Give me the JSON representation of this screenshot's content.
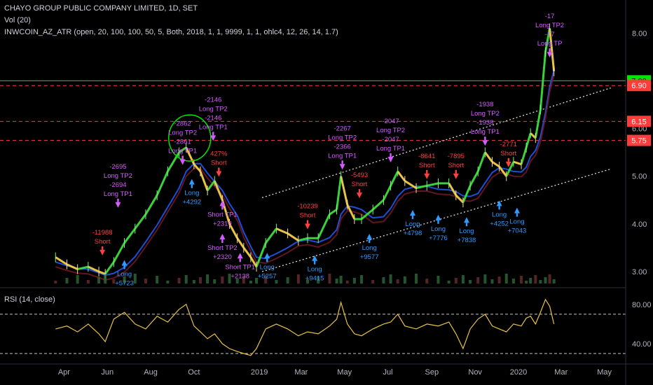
{
  "header": {
    "title": "CHAYO GROUP PUBLIC COMPANY LIMITED, 1D, SET",
    "vol": "Vol (20)",
    "indicator": "INWCOIN_AZ_ATR (open, 20, 100, 100, 50, 5, Both, 2018, 1, 1, 9999, 1, 1, ohlc4, 12, 26, 14, 1.7)"
  },
  "rsi_label": "RSI (14, close)",
  "chart_data": [
    {
      "type": "line",
      "title": "CHAYO GROUP PUBLIC COMPANY LIMITED, 1D, SET",
      "x_labels": [
        "Apr",
        "Jun",
        "Aug",
        "Oct",
        "2019",
        "Mar",
        "May",
        "Jul",
        "Sep",
        "Nov",
        "2020",
        "Mar",
        "May"
      ],
      "ylim": [
        2.75,
        8.4
      ],
      "y_ticks": [
        "8.00",
        "6.00",
        "5.00",
        "4.00",
        "3.00"
      ],
      "price_levels": [
        {
          "value": 7.0,
          "label": "7.00",
          "color": "#00e600",
          "style": "solid"
        },
        {
          "value": 6.9,
          "label": "6.90",
          "color": "#ff3b3b",
          "style": "dashed"
        },
        {
          "value": 6.15,
          "label": "6.15",
          "color": "#ff3b3b",
          "style": "dashed"
        },
        {
          "value": 5.75,
          "label": "5.75",
          "color": "#ff3b3b",
          "style": "dashed"
        }
      ],
      "series": [
        {
          "x": [
            "2018-03-20",
            "2018-04-05",
            "2018-04-20",
            "2018-05-05",
            "2018-05-20",
            "2018-05-29",
            "2018-06-10",
            "2018-06-25",
            "2018-07-10",
            "2018-07-25",
            "2018-08-10",
            "2018-08-25",
            "2018-09-10",
            "2018-09-20",
            "2018-10-01",
            "2018-10-10",
            "2018-10-20",
            "2018-10-30",
            "2018-11-10",
            "2018-11-20",
            "2018-12-01",
            "2018-12-10",
            "2018-12-20",
            "2018-12-28",
            "2019-01-10",
            "2019-01-25",
            "2019-02-10",
            "2019-02-25",
            "2019-03-10",
            "2019-03-25",
            "2019-04-10",
            "2019-04-20",
            "2019-04-26",
            "2019-05-05",
            "2019-05-15",
            "2019-05-25",
            "2019-06-10",
            "2019-06-25",
            "2019-07-05",
            "2019-07-15",
            "2019-07-25",
            "2019-08-10",
            "2019-08-25",
            "2019-09-10",
            "2019-09-25",
            "2019-10-05",
            "2019-10-15",
            "2019-10-25",
            "2019-11-05",
            "2019-11-15",
            "2019-11-25",
            "2019-12-05",
            "2019-12-15",
            "2019-12-25",
            "2020-01-05",
            "2020-01-12",
            "2020-01-18",
            "2020-01-25",
            "2020-02-01",
            "2020-02-08",
            "2020-02-14",
            "2020-02-20"
          ],
          "y": [
            3.3,
            3.15,
            3.05,
            3.1,
            3.0,
            2.95,
            3.2,
            3.6,
            3.9,
            4.2,
            4.6,
            5.1,
            5.5,
            5.6,
            5.25,
            5.1,
            4.7,
            4.9,
            4.5,
            4.0,
            3.7,
            3.5,
            3.3,
            3.1,
            3.6,
            3.9,
            3.8,
            3.65,
            3.7,
            3.7,
            4.2,
            4.3,
            5.0,
            4.4,
            4.1,
            4.1,
            4.3,
            4.5,
            4.8,
            5.1,
            4.9,
            4.75,
            4.8,
            4.85,
            4.85,
            4.6,
            4.45,
            4.8,
            5.1,
            5.5,
            5.3,
            5.2,
            5.0,
            5.3,
            5.25,
            5.6,
            5.9,
            5.8,
            6.4,
            7.6,
            8.1,
            7.2
          ]
        }
      ],
      "signals": [
        {
          "x": "2018-05-25",
          "y": 3.25,
          "text": [
            "-11988",
            "Short"
          ],
          "color": "#ff4040",
          "dir": "down"
        },
        {
          "x": "2018-06-25",
          "y": 3.3,
          "text": [
            "Long",
            "+5723"
          ],
          "color": "#2f9bff",
          "dir": "up"
        },
        {
          "x": "2018-06-16",
          "y": 4.25,
          "text": [
            "-2695",
            "Long TP2",
            "-2694",
            "Long TP1"
          ],
          "color": "#d65cff",
          "dir": "down"
        },
        {
          "x": "2018-09-15",
          "y": 5.15,
          "text": [
            "-2862",
            "Long TP2",
            "-2861",
            "Long TP1"
          ],
          "color": "#d65cff",
          "dir": "down"
        },
        {
          "x": "2018-09-28",
          "y": 5.0,
          "text": [
            "Long",
            "+4292"
          ],
          "color": "#2f9bff",
          "dir": "up"
        },
        {
          "x": "2018-10-28",
          "y": 5.65,
          "text": [
            "-2146",
            "Long TP2",
            "-2146",
            "Long TP1"
          ],
          "color": "#d65cff",
          "dir": "down"
        },
        {
          "x": "2018-11-05",
          "y": 4.9,
          "text": [
            "427%",
            "Short"
          ],
          "color": "#ff4040",
          "dir": "down"
        },
        {
          "x": "2018-11-10",
          "y": 4.55,
          "text": [
            "Short TP1",
            "+2319"
          ],
          "color": "#d65cff",
          "dir": "up"
        },
        {
          "x": "2018-11-10",
          "y": 3.85,
          "text": [
            "Short TP2",
            "+2320"
          ],
          "color": "#d65cff",
          "dir": "up"
        },
        {
          "x": "2018-12-05",
          "y": 3.45,
          "text": [
            "Short TP1",
            "+2138"
          ],
          "color": "#d65cff",
          "dir": "up"
        },
        {
          "x": "2019-01-12",
          "y": 3.45,
          "text": [
            "Long",
            "+5257"
          ],
          "color": "#2f9bff",
          "dir": "up"
        },
        {
          "x": "2019-03-10",
          "y": 3.8,
          "text": [
            "-10239",
            "Short"
          ],
          "color": "#ff4040",
          "dir": "down"
        },
        {
          "x": "2019-03-20",
          "y": 3.4,
          "text": [
            "Long",
            "+9415"
          ],
          "color": "#2f9bff",
          "dir": "up"
        },
        {
          "x": "2019-04-28",
          "y": 5.05,
          "text": [
            "-2267",
            "Long TP2",
            "-2366",
            "Long TP1"
          ],
          "color": "#d65cff",
          "dir": "down"
        },
        {
          "x": "2019-05-22",
          "y": 4.45,
          "text": [
            "-5493",
            "Short"
          ],
          "color": "#ff4040",
          "dir": "down"
        },
        {
          "x": "2019-06-05",
          "y": 3.85,
          "text": [
            "Long",
            "+9577"
          ],
          "color": "#2f9bff",
          "dir": "up"
        },
        {
          "x": "2019-07-05",
          "y": 5.2,
          "text": [
            "-2047",
            "Long TP2",
            "-2047",
            "Long TP1"
          ],
          "color": "#d65cff",
          "dir": "down"
        },
        {
          "x": "2019-08-05",
          "y": 4.35,
          "text": [
            "Long",
            "+4798"
          ],
          "color": "#2f9bff",
          "dir": "up"
        },
        {
          "x": "2019-08-25",
          "y": 4.85,
          "text": [
            "-8641",
            "Short"
          ],
          "color": "#ff4040",
          "dir": "down"
        },
        {
          "x": "2019-09-10",
          "y": 4.25,
          "text": [
            "Long",
            "+7776"
          ],
          "color": "#2f9bff",
          "dir": "up"
        },
        {
          "x": "2019-10-05",
          "y": 4.85,
          "text": [
            "-7895",
            "Short"
          ],
          "color": "#ff4040",
          "dir": "down"
        },
        {
          "x": "2019-10-20",
          "y": 4.2,
          "text": [
            "Long",
            "+7838"
          ],
          "color": "#2f9bff",
          "dir": "up"
        },
        {
          "x": "2019-11-15",
          "y": 5.55,
          "text": [
            "-1938",
            "Long TP2",
            "-1938",
            "Long TP1"
          ],
          "color": "#d65cff",
          "dir": "down"
        },
        {
          "x": "2019-12-05",
          "y": 4.55,
          "text": [
            "Long",
            "+4252"
          ],
          "color": "#2f9bff",
          "dir": "up"
        },
        {
          "x": "2019-12-18",
          "y": 5.1,
          "text": [
            "-2771",
            "Short"
          ],
          "color": "#ff4040",
          "dir": "down"
        },
        {
          "x": "2019-12-30",
          "y": 4.4,
          "text": [
            "Long",
            "+7043"
          ],
          "color": "#2f9bff",
          "dir": "up"
        },
        {
          "x": "2020-02-14",
          "y": 7.4,
          "text": [
            "-17",
            "Long TP2",
            "-17",
            "Long TP"
          ],
          "color": "#d65cff",
          "dir": "down"
        }
      ],
      "trendlines": [
        {
          "from": [
            "2019-01-05",
            4.55
          ],
          "to": [
            "2020-05-10",
            6.85
          ],
          "color": "#dcdcdc",
          "style": "dotted"
        },
        {
          "from": [
            "2019-01-05",
            3.0
          ],
          "to": [
            "2020-05-10",
            5.15
          ],
          "color": "#dcdcdc",
          "style": "dotted"
        }
      ],
      "highlight_circle": {
        "x": "2018-09-25",
        "y": 5.8,
        "color": "#00e600"
      }
    },
    {
      "type": "line",
      "title": "RSI (14, close)",
      "ylim": [
        25,
        92
      ],
      "y_ticks": [
        "80.00",
        "40.00"
      ],
      "reference_lines": [
        70,
        30
      ],
      "series": [
        {
          "name": "RSI",
          "x": [
            "2018-03-20",
            "2018-04-05",
            "2018-04-20",
            "2018-05-05",
            "2018-05-20",
            "2018-05-29",
            "2018-06-10",
            "2018-06-25",
            "2018-07-10",
            "2018-07-25",
            "2018-08-10",
            "2018-08-25",
            "2018-09-10",
            "2018-09-20",
            "2018-10-01",
            "2018-10-10",
            "2018-10-20",
            "2018-10-30",
            "2018-11-10",
            "2018-11-20",
            "2018-12-01",
            "2018-12-10",
            "2018-12-20",
            "2018-12-28",
            "2019-01-10",
            "2019-01-25",
            "2019-02-10",
            "2019-02-25",
            "2019-03-10",
            "2019-03-25",
            "2019-04-10",
            "2019-04-20",
            "2019-04-26",
            "2019-05-05",
            "2019-05-15",
            "2019-05-25",
            "2019-06-10",
            "2019-06-25",
            "2019-07-05",
            "2019-07-15",
            "2019-07-25",
            "2019-08-10",
            "2019-08-25",
            "2019-09-10",
            "2019-09-25",
            "2019-10-05",
            "2019-10-15",
            "2019-10-25",
            "2019-11-05",
            "2019-11-15",
            "2019-11-25",
            "2019-12-05",
            "2019-12-15",
            "2019-12-25",
            "2020-01-05",
            "2020-01-12",
            "2020-01-18",
            "2020-01-25",
            "2020-02-01",
            "2020-02-08",
            "2020-02-14",
            "2020-02-20"
          ],
          "y": [
            55,
            58,
            52,
            60,
            50,
            42,
            65,
            72,
            60,
            55,
            68,
            62,
            75,
            80,
            58,
            52,
            45,
            50,
            40,
            35,
            32,
            30,
            28,
            35,
            55,
            60,
            55,
            48,
            52,
            50,
            58,
            65,
            82,
            60,
            50,
            48,
            55,
            60,
            62,
            70,
            58,
            55,
            60,
            58,
            62,
            50,
            35,
            55,
            65,
            70,
            58,
            55,
            52,
            60,
            58,
            66,
            68,
            60,
            72,
            85,
            78,
            60
          ]
        }
      ],
      "color": "#e8c347"
    }
  ]
}
